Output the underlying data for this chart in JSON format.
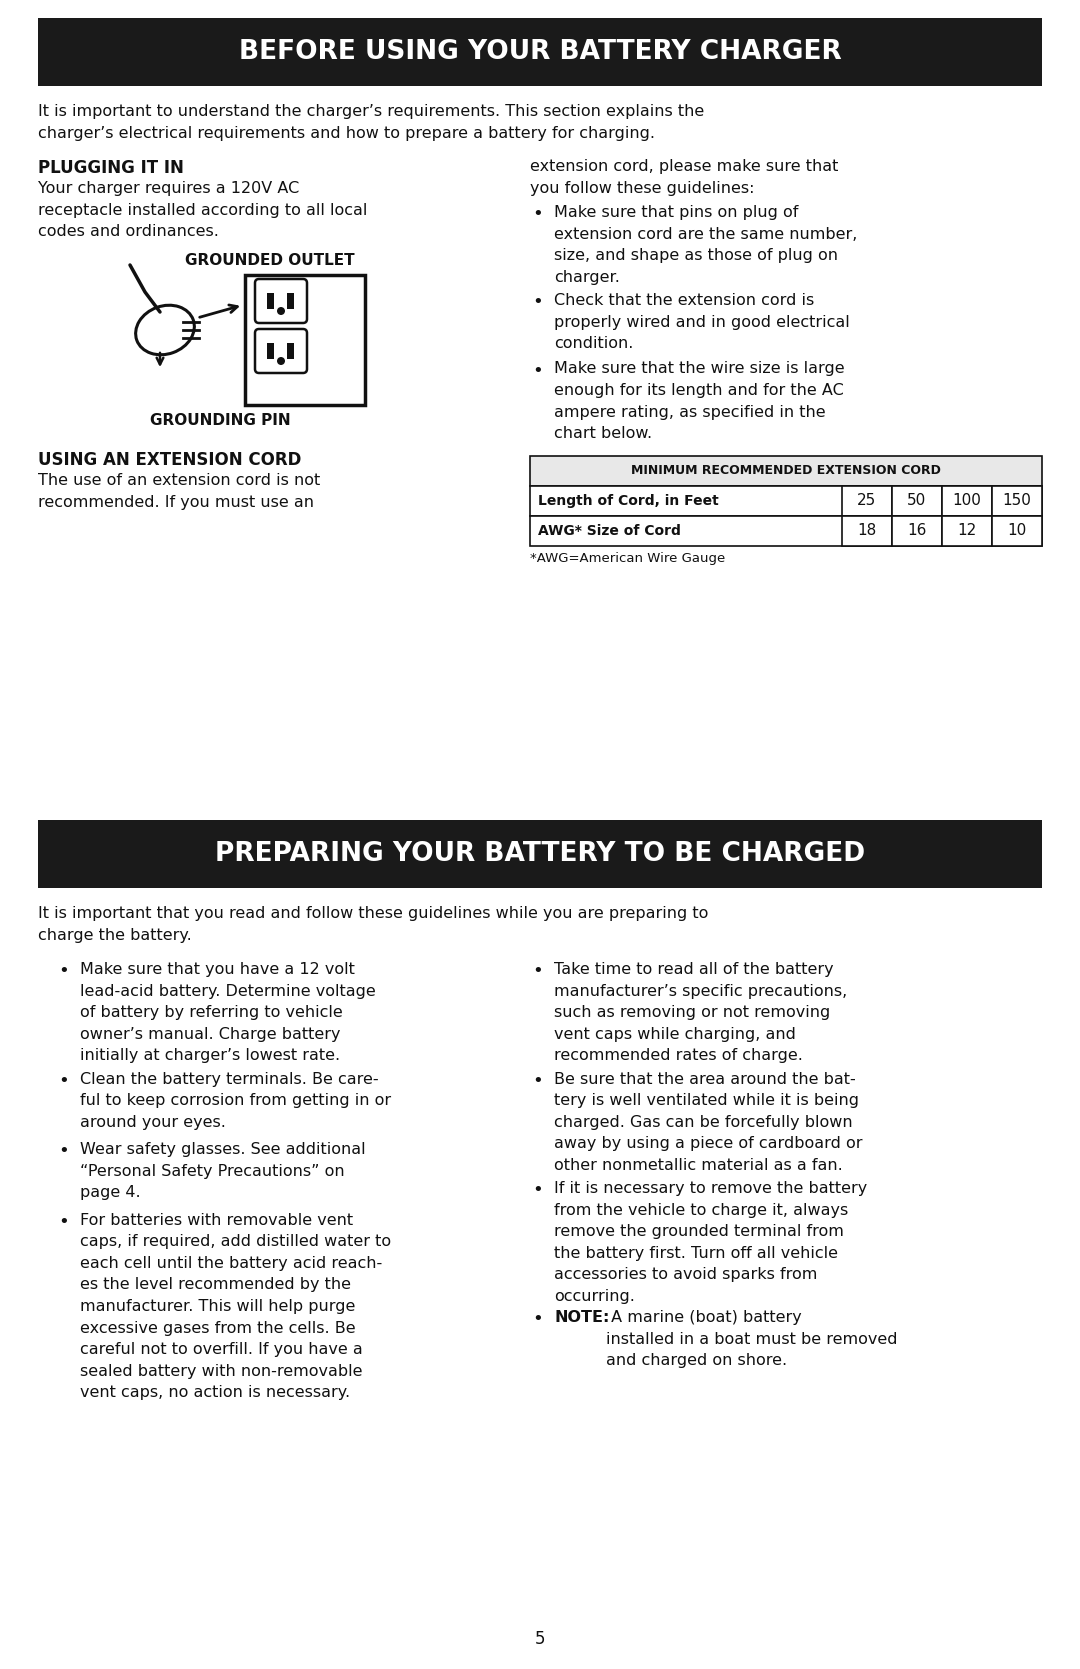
{
  "page_bg": "#ffffff",
  "header1_bg": "#1a1a1a",
  "header1_text": "BEFORE USING YOUR BATTERY CHARGER",
  "header2_bg": "#1a1a1a",
  "header2_text": "PREPARING YOUR BATTERY TO BE CHARGED",
  "header_text_color": "#ffffff",
  "body_text_color": "#111111",
  "intro1": "It is important to understand the charger’s requirements. This section explains the\ncharger’s electrical requirements and how to prepare a battery for charging.",
  "plugging_title": "PLUGGING IT IN",
  "plugging_body": "Your charger requires a 120V AC\nreceptacle installed according to all local\ncodes and ordinances.",
  "grounded_outlet_label": "GROUNDED OUTLET",
  "grounding_pin_label": "GROUNDING PIN",
  "extension_title": "USING AN EXTENSION CORD",
  "extension_body": "The use of an extension cord is not\nrecommended. If you must use an",
  "right_col_extension": "extension cord, please make sure that\nyou follow these guidelines:",
  "bullet_points_extension": [
    "Make sure that pins on plug of\nextension cord are the same number,\nsize, and shape as those of plug on\ncharger.",
    "Check that the extension cord is\nproperly wired and in good electrical\ncondition.",
    "Make sure that the wire size is large\nenough for its length and for the AC\nampere rating, as specified in the\nchart below."
  ],
  "table_header": "MINIMUM RECOMMENDED EXTENSION CORD",
  "table_header_bg": "#e8e8e8",
  "table_row1_label": "Length of Cord, in Feet",
  "table_row1_vals": [
    "25",
    "50",
    "100",
    "150"
  ],
  "table_row2_label": "AWG* Size of Cord",
  "table_row2_vals": [
    "18",
    "16",
    "12",
    "10"
  ],
  "table_footnote": "*AWG=American Wire Gauge",
  "intro2": "It is important that you read and follow these guidelines while you are preparing to\ncharge the battery.",
  "left_bullets_section2": [
    "Make sure that you have a 12 volt\nlead-acid battery. Determine voltage\nof battery by referring to vehicle\nowner’s manual. Charge battery\ninitially at charger’s lowest rate.",
    "Clean the battery terminals. Be care-\nful to keep corrosion from getting in or\naround your eyes.",
    "Wear safety glasses. See additional\n“Personal Safety Precautions” on\npage 4.",
    "For batteries with removable vent\ncaps, if required, add distilled water to\neach cell until the battery acid reach-\nes the level recommended by the\nmanufacturer. This will help purge\nexcessive gases from the cells. Be\ncareful not to overfill. If you have a\nsealed battery with non-removable\nvent caps, no action is necessary."
  ],
  "right_bullets_section2": [
    "Take time to read all of the battery\nmanufacturer’s specific precautions,\nsuch as removing or not removing\nvent caps while charging, and\nrecommended rates of charge.",
    "Be sure that the area around the bat-\ntery is well ventilated while it is being\ncharged. Gas can be forcefully blown\naway by using a piece of cardboard or\nother nonmetallic material as a fan.",
    "If it is necessary to remove the battery\nfrom the vehicle to charge it, always\nremove the grounded terminal from\nthe battery first. Turn off all vehicle\naccessories to avoid sparks from\noccurring.",
    "NOTE: A marine (boat) battery\ninstalled in a boat must be removed\nand charged on shore."
  ],
  "page_number": "5"
}
